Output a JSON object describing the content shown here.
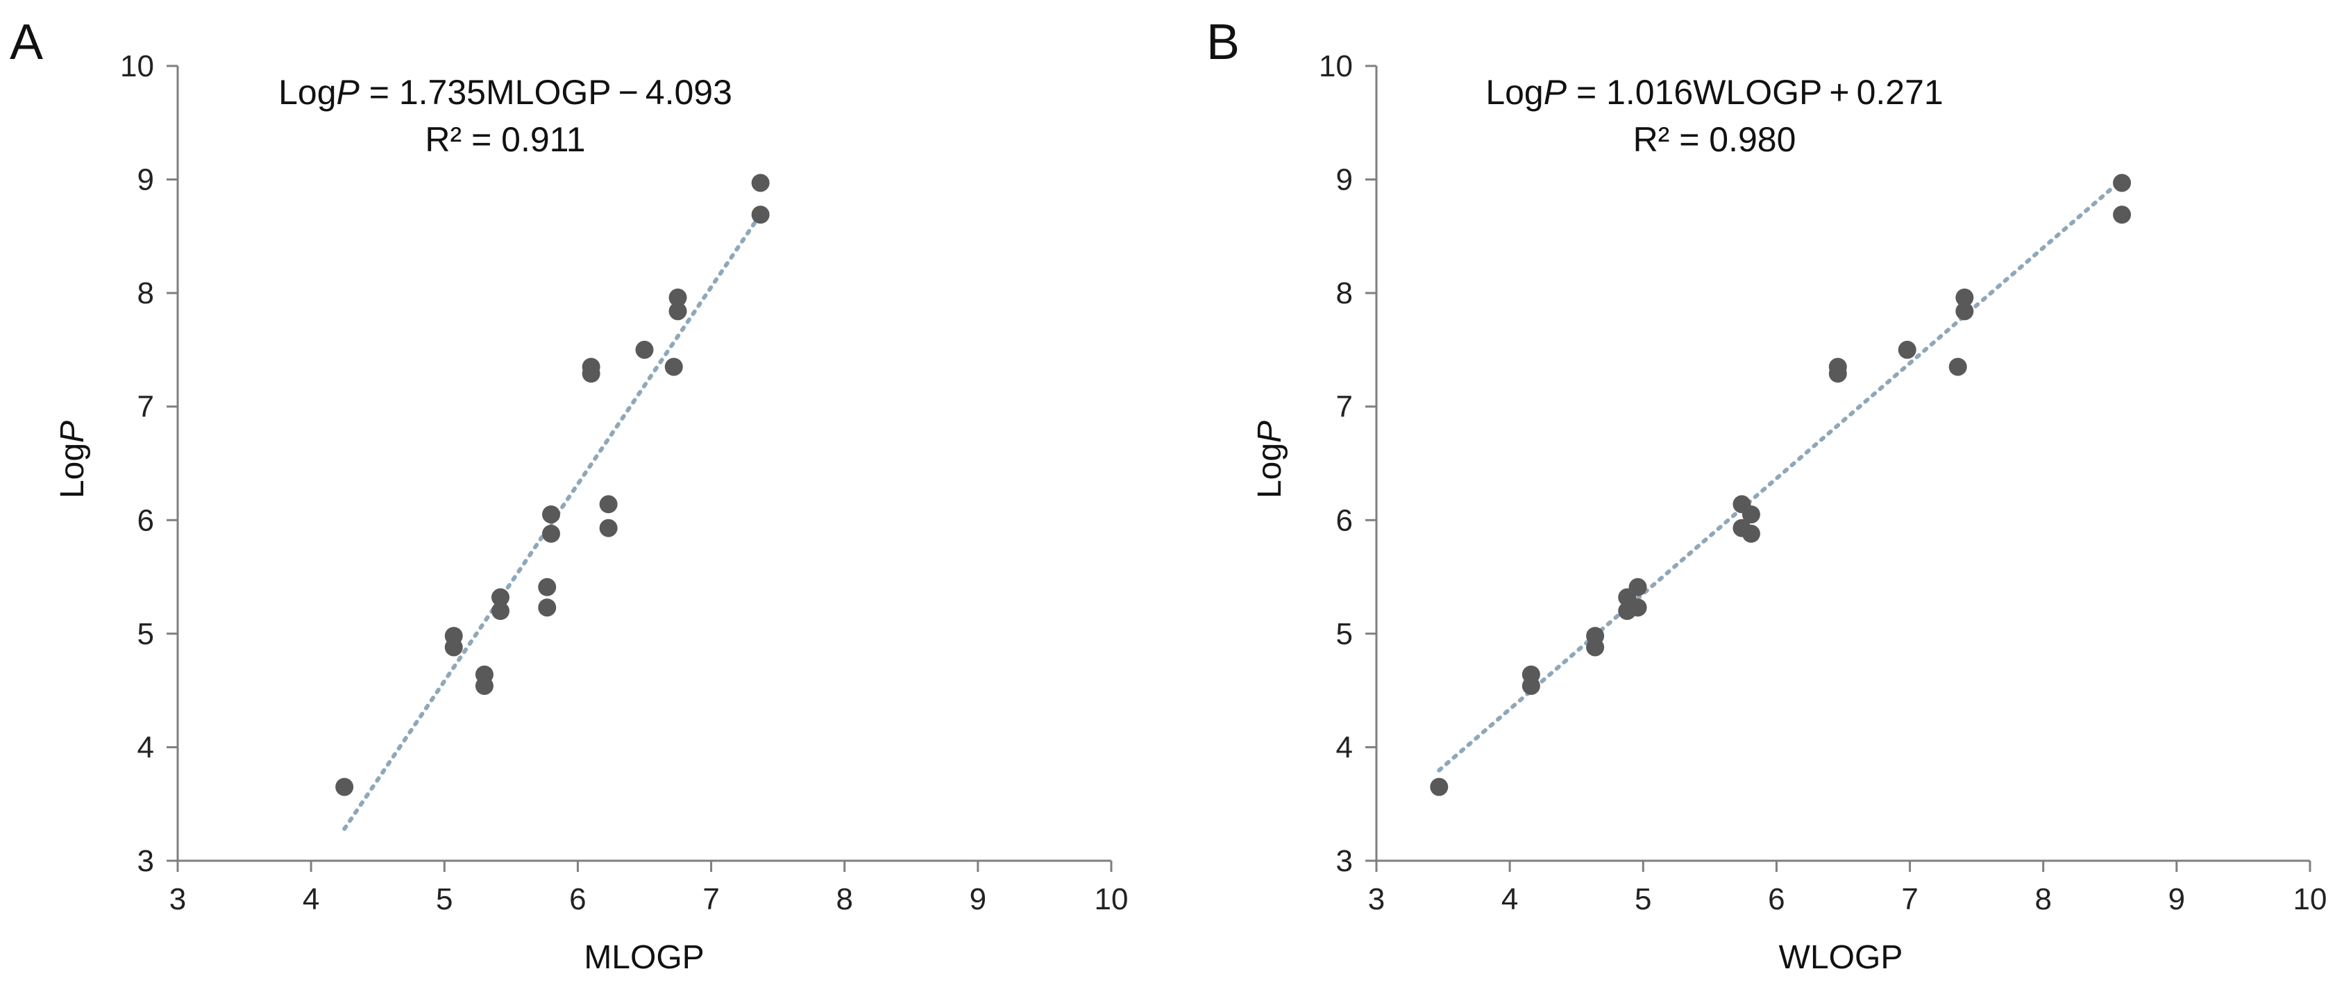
{
  "chart_data": [
    {
      "type": "scatter",
      "panel_label": "A",
      "xlabel": "MLOGP",
      "ylabel_prefix": "Log",
      "ylabel_italic": "P",
      "xlim": [
        3,
        10
      ],
      "ylim": [
        3,
        10
      ],
      "xticks": [
        "3",
        "4",
        "5",
        "6",
        "7",
        "8",
        "9",
        "10"
      ],
      "yticks": [
        "3",
        "4",
        "5",
        "6",
        "7",
        "8",
        "9",
        "10"
      ],
      "equation": {
        "prefix": "Log",
        "italic": "P",
        "rest": " = 1.735MLOGP − 4.093",
        "r2": "R² = 0.911"
      },
      "trendline": {
        "slope": 1.735,
        "intercept": -4.093,
        "x_range": [
          4.25,
          7.38
        ]
      },
      "points": [
        {
          "x": 4.25,
          "y": 3.65
        },
        {
          "x": 5.07,
          "y": 4.98
        },
        {
          "x": 5.07,
          "y": 4.88
        },
        {
          "x": 5.3,
          "y": 4.64
        },
        {
          "x": 5.3,
          "y": 4.54
        },
        {
          "x": 5.42,
          "y": 5.32
        },
        {
          "x": 5.42,
          "y": 5.2
        },
        {
          "x": 5.77,
          "y": 5.41
        },
        {
          "x": 5.77,
          "y": 5.23
        },
        {
          "x": 5.8,
          "y": 6.05
        },
        {
          "x": 5.8,
          "y": 5.88
        },
        {
          "x": 6.1,
          "y": 7.35
        },
        {
          "x": 6.1,
          "y": 7.29
        },
        {
          "x": 6.23,
          "y": 6.14
        },
        {
          "x": 6.23,
          "y": 5.93
        },
        {
          "x": 6.5,
          "y": 7.5
        },
        {
          "x": 6.72,
          "y": 7.35
        },
        {
          "x": 6.75,
          "y": 7.96
        },
        {
          "x": 6.75,
          "y": 7.84
        },
        {
          "x": 7.37,
          "y": 8.97
        },
        {
          "x": 7.37,
          "y": 8.69
        }
      ]
    },
    {
      "type": "scatter",
      "panel_label": "B",
      "xlabel": "WLOGP",
      "ylabel_prefix": "Log",
      "ylabel_italic": "P",
      "xlim": [
        3,
        10
      ],
      "ylim": [
        3,
        10
      ],
      "xticks": [
        "3",
        "4",
        "5",
        "6",
        "7",
        "8",
        "9",
        "10"
      ],
      "yticks": [
        "3",
        "4",
        "5",
        "6",
        "7",
        "8",
        "9",
        "10"
      ],
      "equation": {
        "prefix": "Log",
        "italic": "P",
        "rest": " = 1.016WLOGP + 0.271",
        "r2": "R² = 0.980"
      },
      "trendline": {
        "slope": 1.016,
        "intercept": 0.271,
        "x_range": [
          3.47,
          8.59
        ]
      },
      "points": [
        {
          "x": 3.47,
          "y": 3.65
        },
        {
          "x": 4.16,
          "y": 4.64
        },
        {
          "x": 4.16,
          "y": 4.54
        },
        {
          "x": 4.64,
          "y": 4.98
        },
        {
          "x": 4.64,
          "y": 4.88
        },
        {
          "x": 4.88,
          "y": 5.32
        },
        {
          "x": 4.88,
          "y": 5.2
        },
        {
          "x": 4.96,
          "y": 5.41
        },
        {
          "x": 4.96,
          "y": 5.23
        },
        {
          "x": 5.74,
          "y": 6.14
        },
        {
          "x": 5.74,
          "y": 5.93
        },
        {
          "x": 5.81,
          "y": 6.05
        },
        {
          "x": 5.81,
          "y": 5.88
        },
        {
          "x": 6.46,
          "y": 7.35
        },
        {
          "x": 6.46,
          "y": 7.29
        },
        {
          "x": 6.98,
          "y": 7.5
        },
        {
          "x": 7.36,
          "y": 7.35
        },
        {
          "x": 7.41,
          "y": 7.96
        },
        {
          "x": 7.41,
          "y": 7.84
        },
        {
          "x": 8.59,
          "y": 8.97
        },
        {
          "x": 8.59,
          "y": 8.69
        }
      ]
    }
  ]
}
